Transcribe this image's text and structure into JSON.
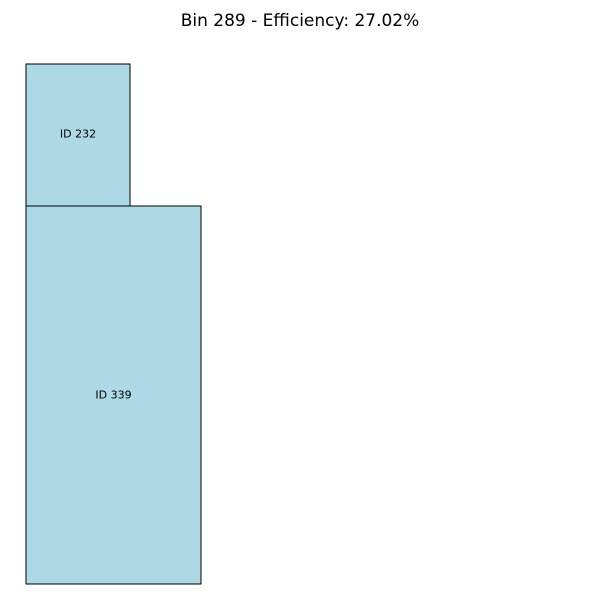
{
  "title": "Bin 289 - Efficiency: 27.02%",
  "colors": {
    "item_fill": "#add8e6",
    "item_stroke": "#000000",
    "background": "#ffffff"
  },
  "items": [
    {
      "id": "232",
      "label": "ID 232"
    },
    {
      "id": "339",
      "label": "ID 339"
    }
  ]
}
